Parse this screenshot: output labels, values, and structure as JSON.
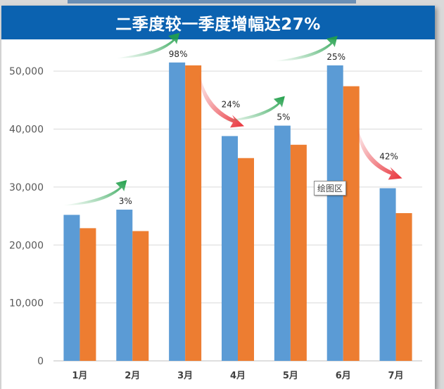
{
  "title": "二季度较一季度增幅达27%",
  "tooltip": "绘图区",
  "colors": {
    "title_bar": "#0b62b0",
    "series_a": "#5b9bd5",
    "series_b": "#ed7d31",
    "arrow_up": "#22a04b",
    "arrow_down": "#e8323a"
  },
  "chart_data": {
    "type": "bar",
    "title": "二季度较一季度增幅达27%",
    "categories": [
      "1月",
      "2月",
      "3月",
      "4月",
      "5月",
      "6月",
      "7月"
    ],
    "series": [
      {
        "values": [
          25200,
          26100,
          51500,
          38800,
          40600,
          51000,
          29800
        ]
      },
      {
        "values": [
          22900,
          22400,
          51000,
          35000,
          37300,
          47400,
          25500
        ]
      }
    ],
    "ylim": [
      0,
      55000
    ],
    "yticks": [
      0,
      10000,
      20000,
      30000,
      40000,
      50000
    ],
    "ytick_labels": [
      "0",
      "10,000",
      "20,000",
      "30,000",
      "40,000",
      "50,000"
    ],
    "grid": true,
    "legend": "none",
    "annotations": [
      {
        "text": "3%",
        "category": "2月",
        "direction": "up"
      },
      {
        "text": "98%",
        "category": "3月",
        "direction": "up"
      },
      {
        "text": "24%",
        "category": "4月",
        "direction": "down"
      },
      {
        "text": "5%",
        "category": "5月",
        "direction": "up"
      },
      {
        "text": "25%",
        "category": "6月",
        "direction": "up"
      },
      {
        "text": "42%",
        "category": "7月",
        "direction": "down"
      }
    ]
  }
}
